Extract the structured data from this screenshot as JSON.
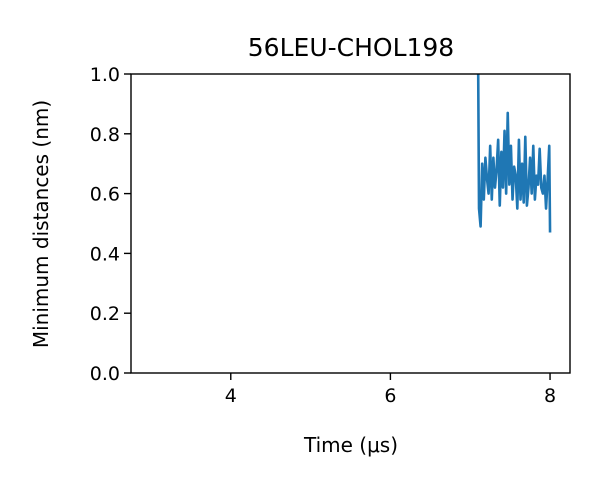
{
  "chart_data": {
    "type": "line",
    "title": "56LEU-CHOL198",
    "xlabel": "Time (μs)",
    "ylabel": "Minimum distances (nm)",
    "xlim": [
      2.75,
      8.25
    ],
    "ylim": [
      0.0,
      1.0
    ],
    "xticks": [
      4,
      6,
      8
    ],
    "xtick_labels": [
      "4",
      "6",
      "8"
    ],
    "yticks": [
      0.0,
      0.2,
      0.4,
      0.6,
      0.8,
      1.0
    ],
    "ytick_labels": [
      "0.0",
      "0.2",
      "0.4",
      "0.6",
      "0.8",
      "1.0"
    ],
    "grid": false,
    "series": [
      {
        "color": "#1f77b4",
        "x": [
          7.1,
          7.11,
          7.13,
          7.15,
          7.17,
          7.19,
          7.21,
          7.23,
          7.25,
          7.27,
          7.29,
          7.31,
          7.33,
          7.35,
          7.37,
          7.39,
          7.41,
          7.43,
          7.45,
          7.47,
          7.49,
          7.51,
          7.53,
          7.55,
          7.57,
          7.59,
          7.61,
          7.63,
          7.65,
          7.67,
          7.69,
          7.71,
          7.73,
          7.75,
          7.77,
          7.79,
          7.81,
          7.83,
          7.85,
          7.87,
          7.89,
          7.91,
          7.93,
          7.95,
          7.97,
          7.99,
          8.0
        ],
        "y": [
          1.0,
          0.55,
          0.49,
          0.7,
          0.58,
          0.72,
          0.65,
          0.6,
          0.76,
          0.58,
          0.72,
          0.62,
          0.68,
          0.78,
          0.56,
          0.74,
          0.62,
          0.81,
          0.6,
          0.87,
          0.63,
          0.76,
          0.58,
          0.69,
          0.66,
          0.55,
          0.78,
          0.58,
          0.7,
          0.57,
          0.79,
          0.56,
          0.62,
          0.72,
          0.6,
          0.76,
          0.58,
          0.66,
          0.63,
          0.75,
          0.62,
          0.6,
          0.66,
          0.55,
          0.65,
          0.76,
          0.47
        ]
      }
    ]
  }
}
